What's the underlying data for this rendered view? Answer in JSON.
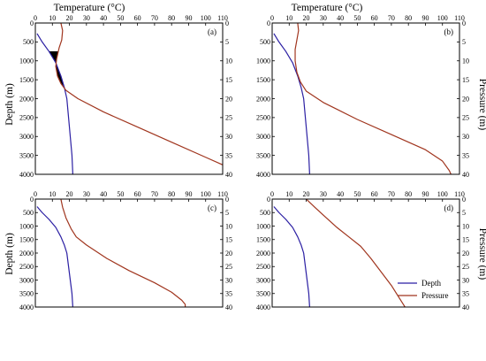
{
  "figure": {
    "top_axis_title": "Temperature (°C)",
    "left_axis_title": "Depth (m)",
    "right_axis_title": "Pressure (m)"
  },
  "chart_data": [
    {
      "type": "line",
      "panel_label": "(a)",
      "x_axis": {
        "label": "Temperature (°C)",
        "range": [
          0,
          110
        ],
        "ticks": [
          0,
          10,
          20,
          30,
          40,
          50,
          60,
          70,
          80,
          90,
          100,
          110
        ]
      },
      "y_axis": {
        "label": "Depth (m)",
        "range": [
          0,
          4000
        ],
        "ticks": [
          0,
          500,
          1000,
          1500,
          2000,
          2500,
          3000,
          3500,
          4000
        ],
        "inverted": true
      },
      "y2_axis": {
        "label": "Pressure (m)",
        "range": [
          0,
          40
        ],
        "ticks": [
          0,
          5,
          10,
          15,
          20,
          25,
          30,
          35,
          40
        ],
        "inverted": true
      },
      "series": [
        {
          "name": "Depth",
          "color": "#2b1fa3",
          "points": [
            [
              1,
              280
            ],
            [
              4,
              500
            ],
            [
              8,
              750
            ],
            [
              12,
              1050
            ],
            [
              15,
              1400
            ],
            [
              17,
              1700
            ],
            [
              18.5,
              2000
            ],
            [
              19.5,
              2500
            ],
            [
              20.5,
              3000
            ],
            [
              21.5,
              3500
            ],
            [
              22,
              4000
            ]
          ]
        },
        {
          "name": "Pressure",
          "color": "#a0351e",
          "points": [
            [
              15,
              0
            ],
            [
              16,
              200
            ],
            [
              15.5,
              450
            ],
            [
              14,
              650
            ],
            [
              12.5,
              950
            ],
            [
              12,
              1150
            ],
            [
              13,
              1400
            ],
            [
              15,
              1600
            ],
            [
              18,
              1780
            ],
            [
              25,
              2000
            ],
            [
              40,
              2350
            ],
            [
              60,
              2750
            ],
            [
              80,
              3150
            ],
            [
              100,
              3550
            ],
            [
              110,
              3750
            ]
          ]
        }
      ],
      "shaded_region": {
        "color": "#000000",
        "between": [
          "Depth",
          "Pressure"
        ],
        "depth_range": [
          750,
          1650
        ]
      }
    },
    {
      "type": "line",
      "panel_label": "(b)",
      "x_axis": {
        "label": "Temperature (°C)",
        "range": [
          0,
          110
        ],
        "ticks": [
          0,
          10,
          20,
          30,
          40,
          50,
          60,
          70,
          80,
          90,
          100,
          110
        ]
      },
      "y_axis": {
        "label": "Depth (m)",
        "range": [
          0,
          4000
        ],
        "ticks": [
          0,
          500,
          1000,
          1500,
          2000,
          2500,
          3000,
          3500,
          4000
        ],
        "inverted": true
      },
      "y2_axis": {
        "label": "Pressure (m)",
        "range": [
          0,
          40
        ],
        "ticks": [
          0,
          5,
          10,
          15,
          20,
          25,
          30,
          35,
          40
        ],
        "inverted": true
      },
      "series": [
        {
          "name": "Depth",
          "color": "#2b1fa3",
          "points": [
            [
              1,
              280
            ],
            [
              4,
              500
            ],
            [
              8,
              750
            ],
            [
              12,
              1050
            ],
            [
              15,
              1400
            ],
            [
              17,
              1700
            ],
            [
              18.5,
              2000
            ],
            [
              19.5,
              2500
            ],
            [
              20.5,
              3000
            ],
            [
              21.5,
              3500
            ],
            [
              22,
              4000
            ]
          ]
        },
        {
          "name": "Pressure",
          "color": "#a0351e",
          "points": [
            [
              15,
              0
            ],
            [
              15.5,
              200
            ],
            [
              14.5,
              450
            ],
            [
              13.5,
              700
            ],
            [
              13.5,
              1000
            ],
            [
              14.5,
              1300
            ],
            [
              16.5,
              1550
            ],
            [
              20,
              1800
            ],
            [
              30,
              2100
            ],
            [
              50,
              2550
            ],
            [
              70,
              2950
            ],
            [
              90,
              3350
            ],
            [
              100,
              3650
            ],
            [
              104,
              3900
            ],
            [
              105,
              4000
            ]
          ]
        }
      ]
    },
    {
      "type": "line",
      "panel_label": "(c)",
      "x_axis": {
        "label": "",
        "range": [
          0,
          110
        ],
        "ticks": [
          0,
          10,
          20,
          30,
          40,
          50,
          60,
          70,
          80,
          90,
          100,
          110
        ]
      },
      "y_axis": {
        "label": "Depth (m)",
        "range": [
          0,
          4000
        ],
        "ticks": [
          0,
          500,
          1000,
          1500,
          2000,
          2500,
          3000,
          3500,
          4000
        ],
        "inverted": true
      },
      "y2_axis": {
        "label": "Pressure (m)",
        "range": [
          0,
          40
        ],
        "ticks": [
          0,
          5,
          10,
          15,
          20,
          25,
          30,
          35,
          40
        ],
        "inverted": true
      },
      "series": [
        {
          "name": "Depth",
          "color": "#2b1fa3",
          "points": [
            [
              1,
              280
            ],
            [
              4,
              500
            ],
            [
              8,
              750
            ],
            [
              12,
              1050
            ],
            [
              15,
              1400
            ],
            [
              17,
              1700
            ],
            [
              18.5,
              2000
            ],
            [
              19.5,
              2500
            ],
            [
              20.5,
              3000
            ],
            [
              21.5,
              3500
            ],
            [
              22,
              4000
            ]
          ]
        },
        {
          "name": "Pressure",
          "color": "#a0351e",
          "points": [
            [
              15,
              0
            ],
            [
              16,
              300
            ],
            [
              18,
              700
            ],
            [
              21,
              1100
            ],
            [
              24,
              1400
            ],
            [
              30,
              1700
            ],
            [
              42,
              2200
            ],
            [
              55,
              2650
            ],
            [
              70,
              3100
            ],
            [
              80,
              3450
            ],
            [
              86,
              3750
            ],
            [
              88,
              3900
            ],
            [
              88,
              4000
            ]
          ]
        }
      ]
    },
    {
      "type": "line",
      "panel_label": "(d)",
      "x_axis": {
        "label": "",
        "range": [
          0,
          110
        ],
        "ticks": [
          0,
          10,
          20,
          30,
          40,
          50,
          60,
          70,
          80,
          90,
          100,
          110
        ]
      },
      "y_axis": {
        "label": "Depth (m)",
        "range": [
          0,
          4000
        ],
        "ticks": [
          0,
          500,
          1000,
          1500,
          2000,
          2500,
          3000,
          3500,
          4000
        ],
        "inverted": true
      },
      "y2_axis": {
        "label": "Pressure (m)",
        "range": [
          0,
          40
        ],
        "ticks": [
          0,
          5,
          10,
          15,
          20,
          25,
          30,
          35,
          40
        ],
        "inverted": true
      },
      "series": [
        {
          "name": "Depth",
          "color": "#2b1fa3",
          "points": [
            [
              1,
              280
            ],
            [
              4,
              500
            ],
            [
              8,
              750
            ],
            [
              12,
              1050
            ],
            [
              15,
              1400
            ],
            [
              17,
              1700
            ],
            [
              18.5,
              2000
            ],
            [
              19.5,
              2500
            ],
            [
              20.5,
              3000
            ],
            [
              21.5,
              3500
            ],
            [
              22,
              4000
            ]
          ]
        },
        {
          "name": "Pressure",
          "color": "#a0351e",
          "points": [
            [
              20,
              0
            ],
            [
              25,
              300
            ],
            [
              31,
              650
            ],
            [
              38,
              1050
            ],
            [
              45,
              1400
            ],
            [
              52,
              1750
            ],
            [
              58,
              2200
            ],
            [
              64,
              2700
            ],
            [
              70,
              3200
            ],
            [
              74,
              3600
            ],
            [
              77,
              3900
            ],
            [
              78,
              4000
            ]
          ]
        }
      ],
      "legend": {
        "placement": "bottom-right",
        "entries": [
          "Depth",
          "Pressure"
        ]
      }
    }
  ]
}
